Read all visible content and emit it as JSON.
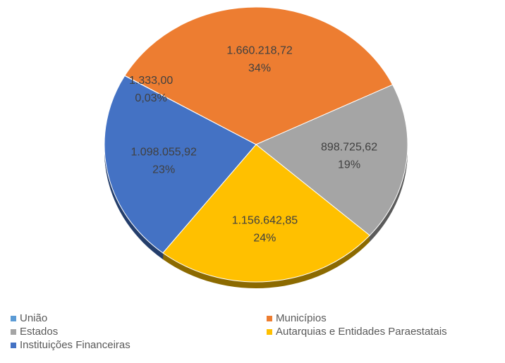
{
  "chart_data": {
    "type": "pie",
    "categories": [
      "União",
      "Municípios",
      "Estados",
      "Autarquias e Entidades Paraestatais",
      "Instituições Financeiras"
    ],
    "values": [
      1333.0,
      1660218.72,
      898725.62,
      1156642.85,
      1098055.92
    ],
    "value_labels": [
      "1.333,00",
      "1.660.218,72",
      "898.725,62",
      "1.156.642,85",
      "1.098.055,92"
    ],
    "percent_labels": [
      "0,03%",
      "34%",
      "19%",
      "24%",
      "23%"
    ],
    "colors": [
      "#5b9bd5",
      "#ed7d31",
      "#a5a5a5",
      "#ffc000",
      "#4472c4"
    ],
    "legend": "bottom"
  }
}
